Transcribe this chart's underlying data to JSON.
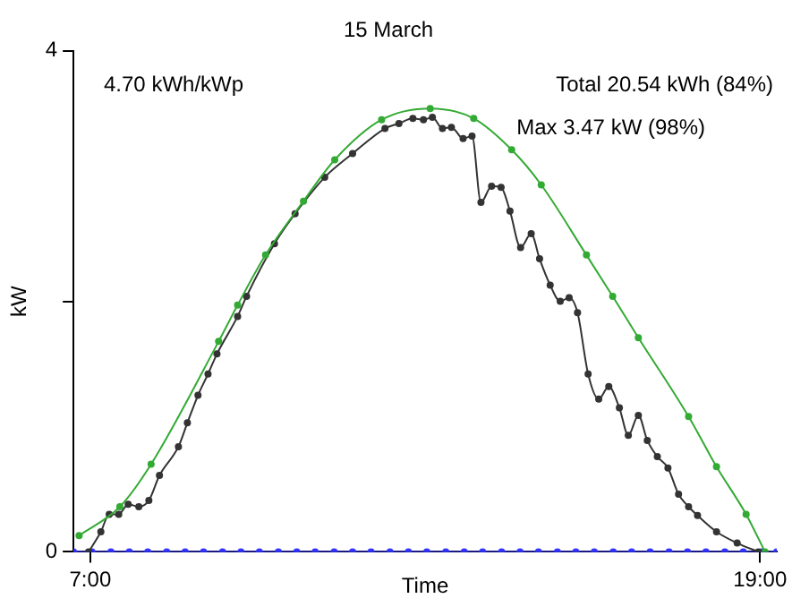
{
  "chart_data": {
    "type": "line",
    "title": "15 March",
    "xlabel": "Time",
    "ylabel": "kW",
    "annotations": [
      "4.70 kWh/kWp",
      "Total 20.54 kWh (84%)",
      "Max 3.47 kW (98%)"
    ],
    "xlim": [
      6.7,
      19.3
    ],
    "xticks": [
      {
        "value": 7,
        "label": "7:00"
      },
      {
        "value": 19,
        "label": "19:00"
      }
    ],
    "ylim": [
      0,
      4
    ],
    "yticks": [
      0,
      {
        "value": 2,
        "label": null
      },
      4
    ],
    "grid": false,
    "legend": false,
    "marker": "circle",
    "line_style": "solid",
    "series": [
      {
        "color": "#33aa33",
        "x": [
          6.8,
          7.53,
          8.09,
          9.3,
          9.64,
          10.14,
          10.82,
          11.38,
          12.22,
          13.09,
          13.87,
          14.55,
          15.08,
          15.89,
          16.36,
          16.82,
          17.72,
          18.22,
          18.75,
          19.09
        ],
        "values": [
          0.13,
          0.36,
          0.7,
          1.68,
          1.97,
          2.37,
          2.8,
          3.13,
          3.45,
          3.54,
          3.46,
          3.21,
          2.93,
          2.37,
          2.04,
          1.71,
          1.08,
          0.68,
          0.3,
          0
        ]
      },
      {
        "color": "#333333",
        "x": [
          6.97,
          7.19,
          7.34,
          7.51,
          7.68,
          7.87,
          8.05,
          8.24,
          8.58,
          8.74,
          8.93,
          9.11,
          9.27,
          9.64,
          9.8,
          10.3,
          10.67,
          11.2,
          11.7,
          12.28,
          12.53,
          12.78,
          12.97,
          13.13,
          13.31,
          13.47,
          13.68,
          13.84,
          14.0,
          14.19,
          14.36,
          14.52,
          14.71,
          14.9,
          15.05,
          15.24,
          15.42,
          15.58,
          15.73,
          15.92,
          16.11,
          16.29,
          16.48,
          16.64,
          16.82,
          16.98,
          17.16,
          17.35,
          17.54,
          17.72,
          17.88,
          18.22,
          18.59,
          18.97
        ],
        "values": [
          0,
          0.16,
          0.3,
          0.3,
          0.38,
          0.36,
          0.41,
          0.61,
          0.84,
          1.03,
          1.25,
          1.42,
          1.58,
          1.88,
          2.04,
          2.46,
          2.7,
          2.99,
          3.18,
          3.38,
          3.42,
          3.46,
          3.45,
          3.47,
          3.38,
          3.39,
          3.3,
          3.32,
          2.79,
          2.92,
          2.91,
          2.72,
          2.43,
          2.54,
          2.34,
          2.13,
          2.0,
          2.03,
          1.91,
          1.42,
          1.22,
          1.32,
          1.15,
          0.93,
          1.09,
          0.89,
          0.76,
          0.67,
          0.46,
          0.36,
          0.29,
          0.16,
          0.07,
          0
        ]
      },
      {
        "color": "#3333ff",
        "x": [
          6.7,
          7.03,
          7.37,
          7.7,
          8.03,
          8.37,
          8.7,
          9.03,
          9.37,
          9.7,
          10.03,
          10.37,
          10.7,
          11.03,
          11.37,
          11.7,
          12.03,
          12.37,
          12.7,
          13.03,
          13.37,
          13.7,
          14.03,
          14.37,
          14.7,
          15.03,
          15.37,
          15.7,
          16.03,
          16.37,
          16.7,
          17.03,
          17.37,
          17.7,
          18.03,
          18.37,
          18.7,
          19.03,
          19.3
        ],
        "values": [
          0,
          0,
          0,
          0,
          0,
          0,
          0,
          0,
          0,
          0,
          0,
          0,
          0,
          0,
          0,
          0,
          0,
          0,
          0,
          0,
          0,
          0,
          0,
          0,
          0,
          0,
          0,
          0,
          0,
          0,
          0,
          0,
          0,
          0,
          0,
          0,
          0,
          0,
          0
        ]
      }
    ]
  }
}
